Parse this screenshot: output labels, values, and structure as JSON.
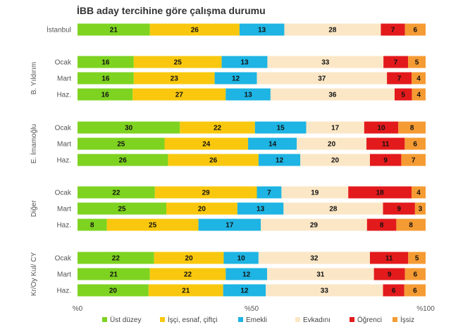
{
  "chart_data": {
    "type": "bar",
    "orientation": "horizontal",
    "stacked": true,
    "title": "İBB aday tercihine göre çalışma durumu",
    "series_names": [
      "Üst düzey",
      "İşçi, esnaf, çiftçi",
      "Emekli",
      "Evkadını",
      "Öğrenci",
      "İşsiz"
    ],
    "colors": [
      "#7ed321",
      "#f9c80e",
      "#1eb4e3",
      "#fbe7c6",
      "#e31a1c",
      "#f59b33"
    ],
    "groups": [
      {
        "name": "",
        "rows": [
          {
            "label": "İstanbul",
            "values": [
              21,
              26,
              13,
              28,
              7,
              6
            ]
          }
        ]
      },
      {
        "name": "B. Yıldırım",
        "rows": [
          {
            "label": "Ocak",
            "values": [
              16,
              25,
              13,
              33,
              7,
              5
            ]
          },
          {
            "label": "Mart",
            "values": [
              16,
              23,
              12,
              37,
              7,
              4
            ]
          },
          {
            "label": "Haz.",
            "values": [
              16,
              27,
              13,
              36,
              5,
              4
            ]
          }
        ]
      },
      {
        "name": "E. İmamoğlu",
        "rows": [
          {
            "label": "Ocak",
            "values": [
              30,
              22,
              15,
              17,
              10,
              8
            ]
          },
          {
            "label": "Mart",
            "values": [
              25,
              24,
              14,
              20,
              11,
              6
            ]
          },
          {
            "label": "Haz.",
            "values": [
              26,
              26,
              12,
              20,
              9,
              7
            ]
          }
        ]
      },
      {
        "name": "Diğer",
        "rows": [
          {
            "label": "Ocak",
            "values": [
              22,
              29,
              7,
              19,
              18,
              4
            ]
          },
          {
            "label": "Mart",
            "values": [
              25,
              20,
              13,
              28,
              9,
              3
            ]
          },
          {
            "label": "Haz.",
            "values": [
              8,
              25,
              17,
              29,
              8,
              8
            ]
          }
        ]
      },
      {
        "name": "Kr/Oy Kul/ CY",
        "rows": [
          {
            "label": "Ocak",
            "values": [
              22,
              20,
              10,
              32,
              11,
              5
            ]
          },
          {
            "label": "Mart",
            "values": [
              21,
              22,
              12,
              31,
              9,
              6
            ]
          },
          {
            "label": "Haz.",
            "values": [
              20,
              21,
              12,
              33,
              6,
              6
            ]
          }
        ]
      }
    ],
    "x_ticks": [
      "%0",
      "%50",
      "%100"
    ],
    "xlim": [
      0,
      100
    ]
  }
}
